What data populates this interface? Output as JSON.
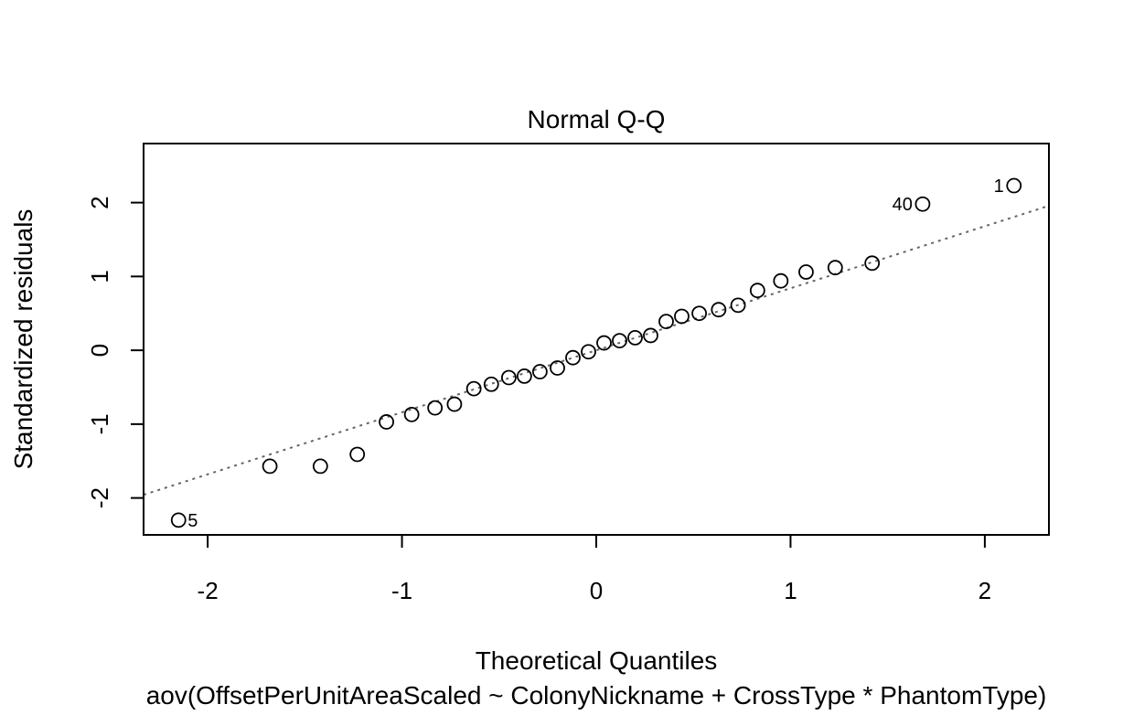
{
  "chart_data": {
    "type": "scatter",
    "title": "Normal Q-Q",
    "xlabel": "Theoretical Quantiles",
    "ylabel": "Standardized residuals",
    "caption": "aov(OffsetPerUnitAreaScaled ~ ColonyNickname + CrossType * PhantomType)",
    "xlim": [
      -2.33,
      2.33
    ],
    "ylim": [
      -2.5,
      2.8
    ],
    "xticks": [
      -2,
      -1,
      0,
      1,
      2
    ],
    "yticks": [
      -2,
      -1,
      0,
      1,
      2
    ],
    "xtick_labels": [
      "-2",
      "-1",
      "0",
      "1",
      "2"
    ],
    "ytick_labels": [
      "-2",
      "-1",
      "0",
      "1",
      "2"
    ],
    "grid": false,
    "reference_line": {
      "style": "dotted",
      "color": "#666666",
      "intercept": 0.0,
      "slope": 0.84
    },
    "points": [
      {
        "x": -2.15,
        "y": -2.3,
        "label": "5"
      },
      {
        "x": -1.68,
        "y": -1.57
      },
      {
        "x": -1.42,
        "y": -1.57
      },
      {
        "x": -1.23,
        "y": -1.41
      },
      {
        "x": -1.08,
        "y": -0.97
      },
      {
        "x": -0.95,
        "y": -0.87
      },
      {
        "x": -0.83,
        "y": -0.78
      },
      {
        "x": -0.73,
        "y": -0.73
      },
      {
        "x": -0.63,
        "y": -0.52
      },
      {
        "x": -0.54,
        "y": -0.46
      },
      {
        "x": -0.45,
        "y": -0.37
      },
      {
        "x": -0.37,
        "y": -0.35
      },
      {
        "x": -0.29,
        "y": -0.29
      },
      {
        "x": -0.2,
        "y": -0.24
      },
      {
        "x": -0.12,
        "y": -0.1
      },
      {
        "x": -0.04,
        "y": -0.02
      },
      {
        "x": 0.04,
        "y": 0.1
      },
      {
        "x": 0.12,
        "y": 0.13
      },
      {
        "x": 0.2,
        "y": 0.17
      },
      {
        "x": 0.28,
        "y": 0.2
      },
      {
        "x": 0.36,
        "y": 0.39
      },
      {
        "x": 0.44,
        "y": 0.46
      },
      {
        "x": 0.53,
        "y": 0.5
      },
      {
        "x": 0.63,
        "y": 0.55
      },
      {
        "x": 0.73,
        "y": 0.61
      },
      {
        "x": 0.83,
        "y": 0.81
      },
      {
        "x": 0.95,
        "y": 0.94
      },
      {
        "x": 1.08,
        "y": 1.06
      },
      {
        "x": 1.23,
        "y": 1.12
      },
      {
        "x": 1.42,
        "y": 1.18
      },
      {
        "x": 1.68,
        "y": 1.98,
        "label": "40"
      },
      {
        "x": 2.15,
        "y": 2.23,
        "label": "1"
      }
    ]
  }
}
